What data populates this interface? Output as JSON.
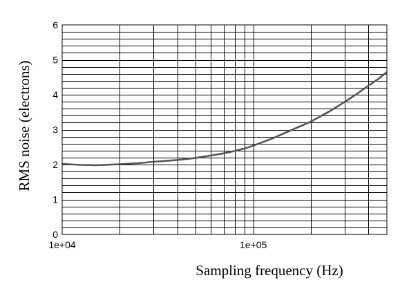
{
  "chart_data": {
    "type": "line",
    "title": "",
    "xlabel": "Sampling frequency (Hz)",
    "ylabel": "RMS noise (electrons)",
    "x_scale": "log",
    "xlim": [
      10000,
      500000
    ],
    "ylim": [
      0,
      6
    ],
    "x_tick_labels": [
      {
        "value": 10000,
        "label": "1e+04"
      },
      {
        "value": 100000,
        "label": "1e+05"
      }
    ],
    "y_tick_labels": [
      {
        "value": 0,
        "label": "0"
      },
      {
        "value": 1,
        "label": "1"
      },
      {
        "value": 2,
        "label": "2"
      },
      {
        "value": 3,
        "label": "3"
      },
      {
        "value": 4,
        "label": "4"
      },
      {
        "value": 5,
        "label": "5"
      },
      {
        "value": 6,
        "label": "6"
      }
    ],
    "x_grid_values": [
      10000,
      20000,
      30000,
      40000,
      50000,
      60000,
      70000,
      80000,
      90000,
      100000,
      200000,
      300000,
      400000,
      500000
    ],
    "y_grid_step": 0.2,
    "grid": true,
    "line_color": "#555555",
    "series": [
      {
        "x": [
          10000,
          12500,
          15000,
          20000,
          25000,
          30000,
          40000,
          50000,
          60000,
          70000,
          80000,
          90000,
          100000,
          125000,
          150000,
          200000,
          250000,
          300000,
          350000,
          400000,
          450000,
          500000
        ],
        "y": [
          2.02,
          1.99,
          1.98,
          2.01,
          2.04,
          2.08,
          2.13,
          2.19,
          2.26,
          2.32,
          2.39,
          2.46,
          2.54,
          2.74,
          2.93,
          3.23,
          3.52,
          3.79,
          4.03,
          4.26,
          4.45,
          4.65
        ]
      }
    ]
  }
}
